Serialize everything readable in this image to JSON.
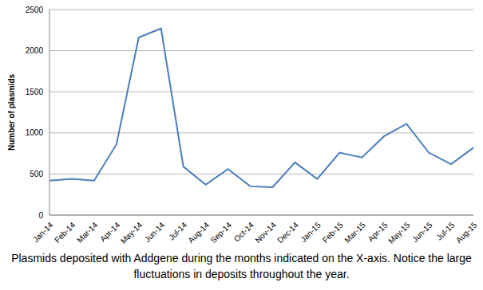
{
  "chart_data": {
    "type": "line",
    "y_label": "Number of plasmids",
    "caption": "Plasmids deposited with Addgene during the months indicated on the X-axis. Notice the large fluctuations in deposits throughout the year.",
    "categories": [
      "Jan-14",
      "Feb-14",
      "Mar-14",
      "Apr-14",
      "May-14",
      "Jun-14",
      "Jul-14",
      "Aug-14",
      "Sep-14",
      "Oct-14",
      "Nov-14",
      "Dec-14",
      "Jan-15",
      "Feb-15",
      "Mar-15",
      "Apr-15",
      "May-15",
      "Jun-15",
      "Jul-15",
      "Aug-15"
    ],
    "values": [
      420,
      440,
      420,
      860,
      2160,
      2270,
      590,
      370,
      560,
      350,
      340,
      640,
      440,
      760,
      700,
      960,
      1110,
      760,
      620,
      820
    ],
    "color": "#4a7ebb",
    "ylim": [
      0,
      2500
    ],
    "yticks": [
      0,
      500,
      1000,
      1500,
      2000,
      2500
    ],
    "grid": true
  }
}
